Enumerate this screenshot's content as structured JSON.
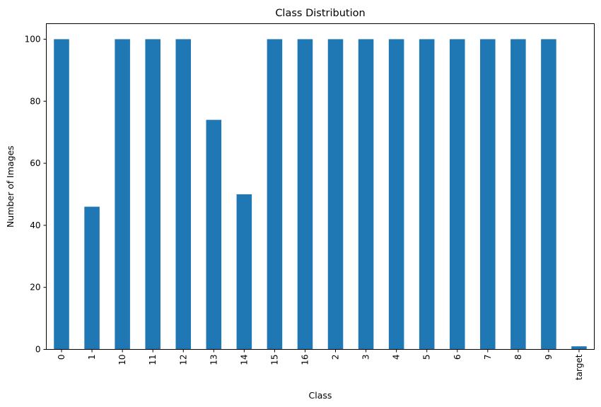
{
  "chart_data": {
    "type": "bar",
    "title": "Class Distribution",
    "xlabel": "Class",
    "ylabel": "Number of Images",
    "categories": [
      "0",
      "1",
      "10",
      "11",
      "12",
      "13",
      "14",
      "15",
      "16",
      "2",
      "3",
      "4",
      "5",
      "6",
      "7",
      "8",
      "9",
      "target"
    ],
    "values": [
      100,
      46,
      100,
      100,
      100,
      74,
      50,
      100,
      100,
      100,
      100,
      100,
      100,
      100,
      100,
      100,
      100,
      1
    ],
    "ylim": [
      0,
      105
    ],
    "yticks": [
      0,
      20,
      40,
      60,
      80,
      100
    ],
    "bar_color": "#1f77b4",
    "grid": false,
    "xtick_rotation": "vertical"
  }
}
